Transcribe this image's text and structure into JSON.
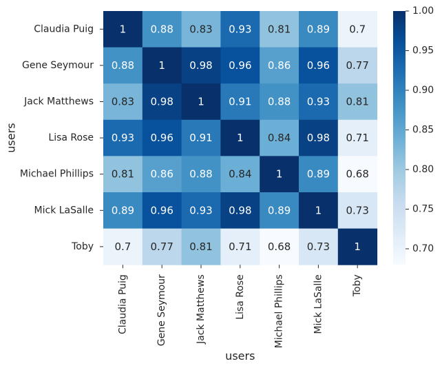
{
  "chart_data": {
    "type": "heatmap",
    "xlabel": "users",
    "ylabel": "users",
    "rows": [
      "Claudia Puig",
      "Gene Seymour",
      "Jack Matthews",
      "Lisa Rose",
      "Michael Phillips",
      "Mick LaSalle",
      "Toby"
    ],
    "cols": [
      "Claudia Puig",
      "Gene Seymour",
      "Jack Matthews",
      "Lisa Rose",
      "Michael Phillips",
      "Mick LaSalle",
      "Toby"
    ],
    "values": [
      [
        1,
        0.88,
        0.83,
        0.93,
        0.81,
        0.89,
        0.7
      ],
      [
        0.88,
        1,
        0.98,
        0.96,
        0.86,
        0.96,
        0.77
      ],
      [
        0.83,
        0.98,
        1,
        0.91,
        0.88,
        0.93,
        0.81
      ],
      [
        0.93,
        0.96,
        0.91,
        1,
        0.84,
        0.98,
        0.71
      ],
      [
        0.81,
        0.86,
        0.88,
        0.84,
        1,
        0.89,
        0.68
      ],
      [
        0.89,
        0.96,
        0.93,
        0.98,
        0.89,
        1,
        0.73
      ],
      [
        0.7,
        0.77,
        0.81,
        0.71,
        0.68,
        0.73,
        1
      ]
    ],
    "colormap": "Blues",
    "vmin": 0.68,
    "vmax": 1.0,
    "colorbar_ticks": [
      "0.70",
      "0.75",
      "0.80",
      "0.85",
      "0.90",
      "0.95",
      "1.00"
    ]
  }
}
